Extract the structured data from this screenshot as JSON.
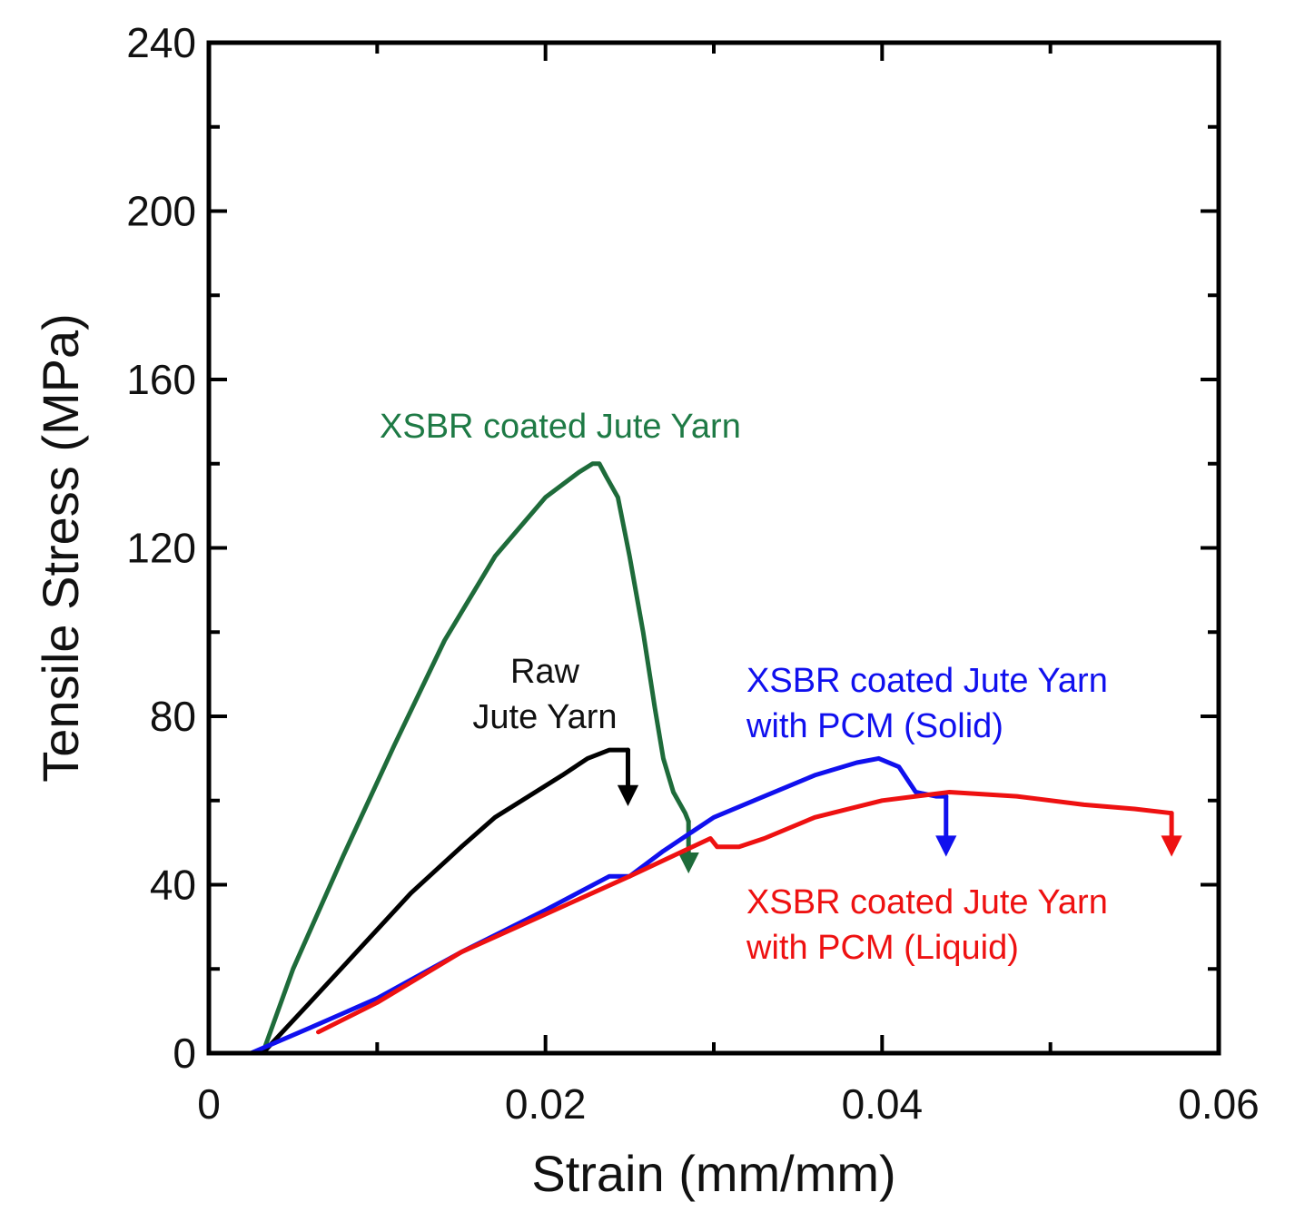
{
  "chart_data": {
    "type": "line",
    "title": "",
    "xlabel": "Strain (mm/mm)",
    "ylabel": "Tensile Stress (MPa)",
    "xlim": [
      0,
      0.06
    ],
    "ylim": [
      0,
      240
    ],
    "x_major_ticks": [
      0,
      0.02,
      0.04,
      0.06
    ],
    "x_tick_labels": [
      "0",
      "0.02",
      "0.04",
      "0.06"
    ],
    "x_minor_ticks": [
      0.01,
      0.03,
      0.05
    ],
    "y_major_ticks": [
      0,
      40,
      80,
      120,
      160,
      200,
      240
    ],
    "y_tick_labels": [
      "0",
      "40",
      "80",
      "120",
      "160",
      "200",
      "240"
    ],
    "y_minor_ticks": [
      20,
      60,
      100,
      140,
      180,
      220
    ],
    "grid": false,
    "series": [
      {
        "name": "XSBR coated Jute Yarn",
        "label_lines": [
          "XSBR coated Jute Yarn"
        ],
        "color": "#1e6b3a",
        "x": [
          0.0032,
          0.005,
          0.008,
          0.011,
          0.014,
          0.017,
          0.02,
          0.022,
          0.0228,
          0.0232,
          0.0236,
          0.0243,
          0.025,
          0.0258,
          0.0265,
          0.027,
          0.0276,
          0.0283,
          0.0285
        ],
        "y": [
          0,
          20,
          47,
          73,
          98,
          118,
          132,
          138,
          140,
          140,
          137,
          132,
          118,
          100,
          82,
          70,
          62,
          57,
          55
        ],
        "break": {
          "x": 0.0285,
          "y_from": 55,
          "y_to": 44
        }
      },
      {
        "name": "Raw Jute Yarn",
        "label_lines": [
          "Raw",
          "Jute Yarn"
        ],
        "color": "#000000",
        "x": [
          0.0032,
          0.006,
          0.009,
          0.012,
          0.015,
          0.017,
          0.019,
          0.021,
          0.0225,
          0.0238,
          0.0248,
          0.0249
        ],
        "y": [
          0,
          12,
          25,
          38,
          49,
          56,
          61,
          66,
          70,
          72,
          72,
          72
        ],
        "break": {
          "x": 0.0249,
          "y_from": 72,
          "y_to": 60
        }
      },
      {
        "name": "XSBR coated Jute Yarn with PCM (Solid)",
        "label_lines": [
          "XSBR coated Jute Yarn",
          "with PCM (Solid)"
        ],
        "color": "#1010ee",
        "x": [
          0.0025,
          0.006,
          0.01,
          0.015,
          0.02,
          0.0238,
          0.025,
          0.027,
          0.03,
          0.033,
          0.036,
          0.0385,
          0.0398,
          0.041,
          0.042,
          0.0432,
          0.0438
        ],
        "y": [
          0,
          6,
          13,
          24,
          34,
          42,
          42,
          48,
          56,
          61,
          66,
          69,
          70,
          68,
          62,
          61,
          61
        ],
        "break": {
          "x": 0.0438,
          "y_from": 61,
          "y_to": 48
        }
      },
      {
        "name": "XSBR coated Jute Yarn with PCM (Liquid)",
        "label_lines": [
          "XSBR coated Jute Yarn",
          "with PCM (Liquid)"
        ],
        "color": "#ee1111",
        "x": [
          0.0065,
          0.01,
          0.015,
          0.02,
          0.025,
          0.0298,
          0.0302,
          0.0315,
          0.033,
          0.036,
          0.04,
          0.044,
          0.048,
          0.052,
          0.055,
          0.0572
        ],
        "y": [
          5,
          12,
          24,
          33,
          42,
          51,
          49,
          49,
          51,
          56,
          60,
          62,
          61,
          59,
          58,
          57
        ],
        "break": {
          "x": 0.0572,
          "y_from": 57,
          "y_to": 48
        }
      }
    ]
  }
}
